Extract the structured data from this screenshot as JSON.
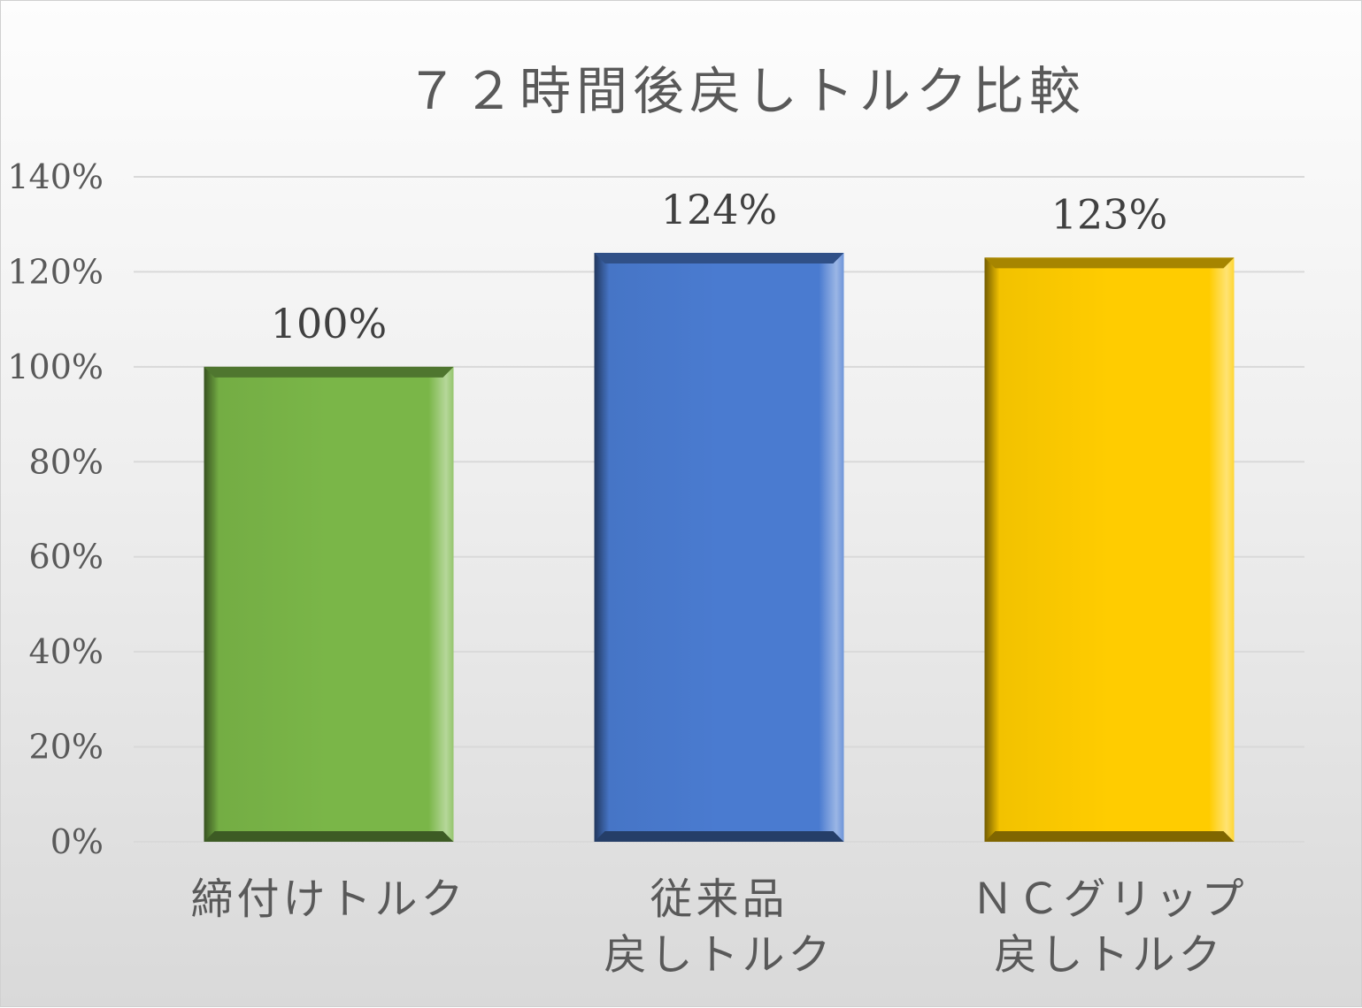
{
  "chart_data": {
    "type": "bar",
    "title": "７２時間後戻しトルク比較",
    "categories": [
      [
        "締付けトルク"
      ],
      [
        "従来品",
        "戻しトルク"
      ],
      [
        "ＮＣグリップ",
        "戻しトルク"
      ]
    ],
    "values": [
      100,
      124,
      123
    ],
    "data_labels": [
      "100%",
      "124%",
      "123%"
    ],
    "colors": [
      "#7ab648",
      "#4a7bd0",
      "#ffcc00"
    ],
    "ylim": [
      0,
      140
    ],
    "yticks": [
      0,
      20,
      40,
      60,
      80,
      100,
      120,
      140
    ],
    "ytick_labels": [
      "0%",
      "20%",
      "40%",
      "60%",
      "80%",
      "100%",
      "120%",
      "140%"
    ],
    "grid": true,
    "legend": "none",
    "xlabel": "",
    "ylabel": ""
  }
}
